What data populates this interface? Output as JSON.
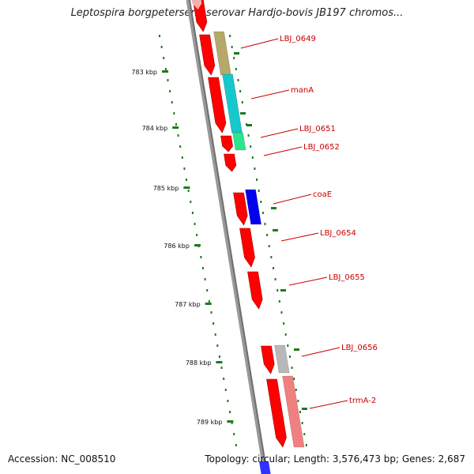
{
  "title": "Leptospira borgpetersenii serovar Hardjo-bovis JB197 chromos...",
  "footer": {
    "accession": "Accession: NC_008510",
    "topology": "Topology: circular; Length: 3,576,473 bp; Genes: 2,687"
  },
  "kbp_labels": [
    "783 kbp",
    "784 kbp",
    "785 kbp",
    "786 kbp",
    "787 kbp",
    "788 kbp",
    "789 kbp"
  ],
  "genes": [
    {
      "label": "LBJ_0649",
      "color": "#b5a86a"
    },
    {
      "label": "manA",
      "color": "#16c7cc"
    },
    {
      "label": "LBJ_0651",
      "color": "#2be58c"
    },
    {
      "label": "LBJ_0652",
      "color": "#ff0000"
    },
    {
      "label": "coaE",
      "color": "#0000ee"
    },
    {
      "label": "LBJ_0654",
      "color": "#ff0000"
    },
    {
      "label": "LBJ_0655",
      "color": "#ff0000"
    },
    {
      "label": "LBJ_0656",
      "color": "#b8b8b8"
    },
    {
      "label": "trmA-2",
      "color": "#f08080"
    }
  ],
  "colors": {
    "backbone": "#808080",
    "forward_strand": "#ff0000",
    "tick": "#1e7a1e",
    "label": "#c80000"
  }
}
